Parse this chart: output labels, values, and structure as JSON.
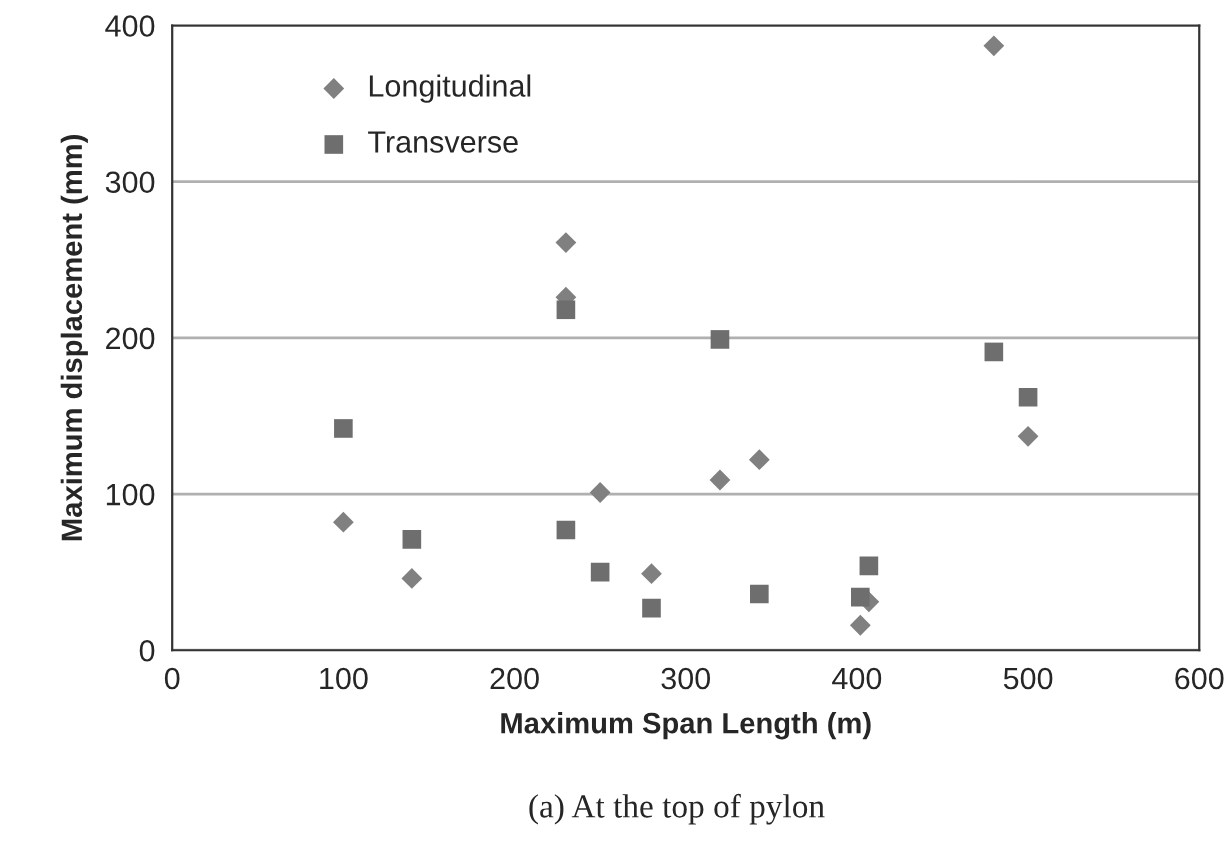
{
  "chart_data": {
    "type": "scatter",
    "xlabel": "Maximum Span Length (m)",
    "ylabel": "Maximum displacement (mm)",
    "annotations": [
      "(a) At the top of pylon"
    ],
    "xlim": [
      0,
      600
    ],
    "xticks": [
      0,
      100,
      200,
      300,
      400,
      500,
      600
    ],
    "ylim": [
      0,
      400
    ],
    "yticks": [
      0,
      100,
      200,
      300,
      400
    ],
    "grid": "y",
    "legend": "top left",
    "series": [
      {
        "name": "Longitudinal",
        "color": "#808080",
        "marker": "diamond",
        "x": [
          100,
          140,
          230,
          230,
          250,
          280,
          320,
          343,
          402,
          407,
          480,
          500
        ],
        "values": [
          82,
          46,
          261,
          226,
          101,
          49,
          109,
          122,
          16,
          31,
          387,
          137
        ]
      },
      {
        "name": "Transverse",
        "color": "#6e6e6e",
        "marker": "square",
        "x": [
          100,
          140,
          230,
          230,
          250,
          280,
          320,
          343,
          402,
          407,
          480,
          500
        ],
        "values": [
          142,
          71,
          218,
          77,
          50,
          27,
          199,
          36,
          34,
          54,
          191,
          162
        ]
      }
    ]
  }
}
